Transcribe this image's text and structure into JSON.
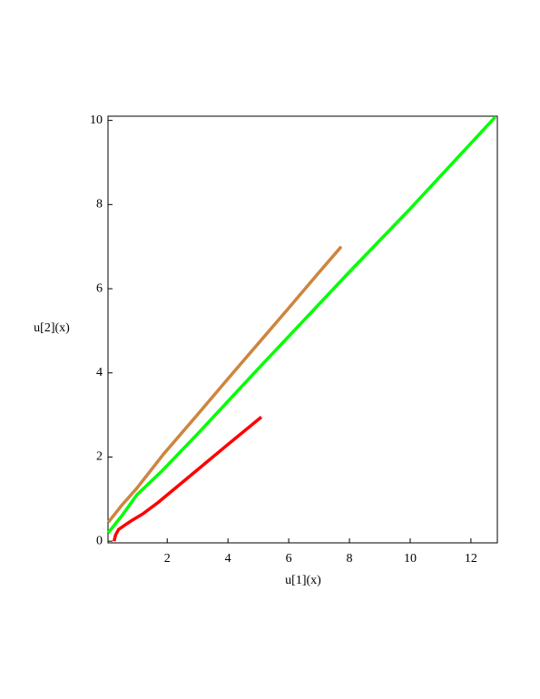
{
  "chart_data": {
    "type": "line",
    "x_label": "u[1](x)",
    "y_label": "u[2](x)",
    "xlim": [
      0.05,
      12.87
    ],
    "ylim": [
      -0.04,
      10.1
    ],
    "xticks": [
      2,
      4,
      6,
      8,
      10,
      12
    ],
    "yticks": [
      0,
      2,
      4,
      6,
      8,
      10
    ],
    "series": [
      {
        "color": "#cd853f",
        "x": [
          0.06,
          0.5,
          0.99,
          1.88,
          3,
          4,
          5,
          6,
          7,
          7.73
        ],
        "values": [
          0.45,
          0.85,
          1.25,
          2.07,
          3.01,
          3.86,
          4.7,
          5.54,
          6.39,
          7.0
        ]
      },
      {
        "color": "#00ff00",
        "x": [
          0.06,
          0.5,
          1.0,
          1.8,
          3,
          5,
          8,
          10,
          12.8
        ],
        "values": [
          0.2,
          0.6,
          1.1,
          1.65,
          2.55,
          4.1,
          6.4,
          7.9,
          10.08
        ]
      },
      {
        "color": "#ff0000",
        "x": [
          0.25,
          0.3,
          0.4,
          0.6,
          0.85,
          1.2,
          1.7,
          3,
          4,
          5.1
        ],
        "values": [
          0.0,
          0.15,
          0.28,
          0.38,
          0.5,
          0.65,
          0.92,
          1.7,
          2.3,
          2.95
        ]
      }
    ]
  }
}
